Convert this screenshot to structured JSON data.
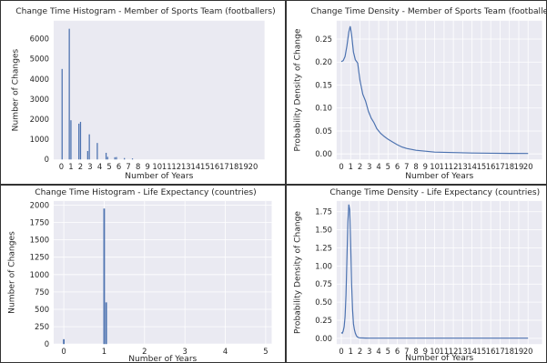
{
  "colors": {
    "plot_bg": "#eaeaf2",
    "grid": "#ffffff",
    "series": "#4c72b0",
    "text": "#262626"
  },
  "chart_data": [
    {
      "type": "bar",
      "title": "Change Time Histogram - Member of Sports Team (footballers)",
      "xlabel": "Number of Years",
      "ylabel": "Number of Changes",
      "xlim": [
        -0.8,
        21.2
      ],
      "ylim": [
        0,
        6900
      ],
      "xticks": [
        "0",
        "1",
        "2",
        "3",
        "4",
        "5",
        "6",
        "7",
        "8",
        "9",
        "10",
        "11",
        "12",
        "13",
        "14",
        "15",
        "16",
        "17",
        "18",
        "19",
        "20"
      ],
      "yticks": [
        "0",
        "1000",
        "2000",
        "3000",
        "4000",
        "5000",
        "6000"
      ],
      "grid": false,
      "bar_width": 0.12,
      "x": [
        0.08,
        0.83,
        1.0,
        1.83,
        2.0,
        2.75,
        2.92,
        3.75,
        4.67,
        4.83,
        5.58,
        5.75,
        6.58,
        7.42
      ],
      "values": [
        4500,
        6500,
        1950,
        1780,
        1870,
        420,
        1250,
        820,
        330,
        130,
        110,
        120,
        70,
        50
      ]
    },
    {
      "type": "line",
      "title": "Change Time Density - Member of Sports Team (footballers)",
      "xlabel": "Number of Years",
      "ylabel": "Probability Density of Change",
      "xlim": [
        -0.5,
        21.5
      ],
      "ylim": [
        -0.012,
        0.29
      ],
      "xticks": [
        "0",
        "1",
        "2",
        "3",
        "4",
        "5",
        "6",
        "7",
        "8",
        "9",
        "10",
        "11",
        "12",
        "13",
        "14",
        "15",
        "16",
        "17",
        "18",
        "19",
        "20"
      ],
      "yticks": [
        "0.00",
        "0.05",
        "0.10",
        "0.15",
        "0.20",
        "0.25"
      ],
      "grid": true,
      "x": [
        0,
        0.2,
        0.4,
        0.6,
        0.8,
        0.95,
        1.1,
        1.3,
        1.5,
        1.75,
        2.0,
        2.3,
        2.6,
        2.9,
        3.2,
        3.5,
        3.8,
        4.2,
        4.6,
        5.0,
        5.5,
        6.0,
        6.5,
        7.0,
        8.0,
        9.0,
        10.0,
        12.0,
        14.0,
        16.0,
        18.0,
        20.0
      ],
      "y": [
        0.201,
        0.203,
        0.212,
        0.235,
        0.265,
        0.278,
        0.26,
        0.222,
        0.205,
        0.198,
        0.16,
        0.13,
        0.115,
        0.093,
        0.078,
        0.068,
        0.055,
        0.045,
        0.038,
        0.032,
        0.026,
        0.02,
        0.015,
        0.012,
        0.008,
        0.006,
        0.004,
        0.003,
        0.002,
        0.0015,
        0.0012,
        0.001
      ]
    },
    {
      "type": "bar",
      "title": "Change Time Histogram - Life Expectancy (countries)",
      "xlabel": "Number of Years",
      "ylabel": "Number of Changes",
      "xlim": [
        -0.25,
        5.15
      ],
      "ylim": [
        0,
        2060
      ],
      "xticks": [
        "0",
        "1",
        "2",
        "3",
        "4",
        "5"
      ],
      "yticks": [
        "0",
        "250",
        "500",
        "750",
        "1000",
        "1250",
        "1500",
        "1750",
        "2000"
      ],
      "grid": true,
      "bar_width": 0.04,
      "x": [
        0.0,
        1.0,
        1.05
      ],
      "values": [
        70,
        1950,
        600
      ]
    },
    {
      "type": "line",
      "title": "Change Time Density - Life Expectancy (countries)",
      "xlabel": "Number of Years",
      "ylabel": "Probability Density of Change",
      "xlim": [
        -0.5,
        21.5
      ],
      "ylim": [
        -0.08,
        1.9
      ],
      "xticks": [
        "0",
        "1",
        "2",
        "3",
        "4",
        "5",
        "6",
        "7",
        "8",
        "9",
        "10",
        "11",
        "12",
        "13",
        "14",
        "15",
        "16",
        "17",
        "18",
        "19",
        "20"
      ],
      "yticks": [
        "0.00",
        "0.25",
        "0.50",
        "0.75",
        "1.00",
        "1.25",
        "1.50",
        "1.75"
      ],
      "grid": true,
      "x": [
        0,
        0.1,
        0.2,
        0.3,
        0.4,
        0.5,
        0.6,
        0.7,
        0.8,
        0.9,
        1.0,
        1.1,
        1.2,
        1.3,
        1.4,
        1.5,
        1.6,
        1.7,
        1.85,
        2.0,
        2.3,
        2.6,
        3.0,
        4.0,
        6.0,
        10.0,
        15.0,
        20.0
      ],
      "y": [
        0.08,
        0.07,
        0.1,
        0.16,
        0.3,
        0.6,
        1.1,
        1.6,
        1.85,
        1.78,
        1.3,
        0.75,
        0.4,
        0.2,
        0.12,
        0.07,
        0.04,
        0.02,
        0.01,
        0.005,
        0.004,
        0.003,
        0.002,
        0.002,
        0.002,
        0.002,
        0.002,
        0.002
      ]
    }
  ]
}
